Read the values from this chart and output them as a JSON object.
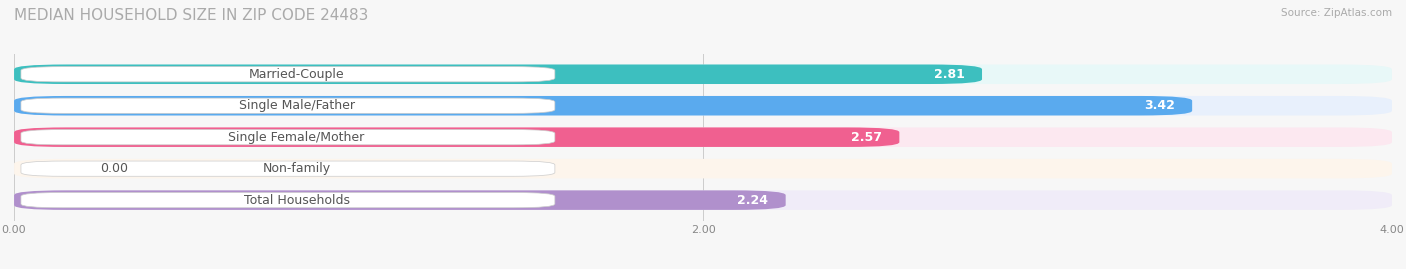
{
  "title": "MEDIAN HOUSEHOLD SIZE IN ZIP CODE 24483",
  "source": "Source: ZipAtlas.com",
  "categories": [
    "Married-Couple",
    "Single Male/Father",
    "Single Female/Mother",
    "Non-family",
    "Total Households"
  ],
  "values": [
    2.81,
    3.42,
    2.57,
    0.0,
    2.24
  ],
  "bar_colors": [
    "#3dbfbf",
    "#5aaaee",
    "#f06090",
    "#f5c896",
    "#b090cc"
  ],
  "bar_bg_colors": [
    "#e8f8f8",
    "#e8f0fc",
    "#fce8f0",
    "#fdf5ec",
    "#f0ecf8"
  ],
  "xlim": [
    0,
    4.0
  ],
  "xticks": [
    0.0,
    2.0,
    4.0
  ],
  "xtick_labels": [
    "0.00",
    "2.00",
    "4.00"
  ],
  "value_color": "#ffffff",
  "label_color": "#555555",
  "title_color": "#aaaaaa",
  "bg_color": "#f7f7f7",
  "bar_height": 0.62,
  "label_fontsize": 9,
  "value_fontsize": 9,
  "title_fontsize": 11
}
